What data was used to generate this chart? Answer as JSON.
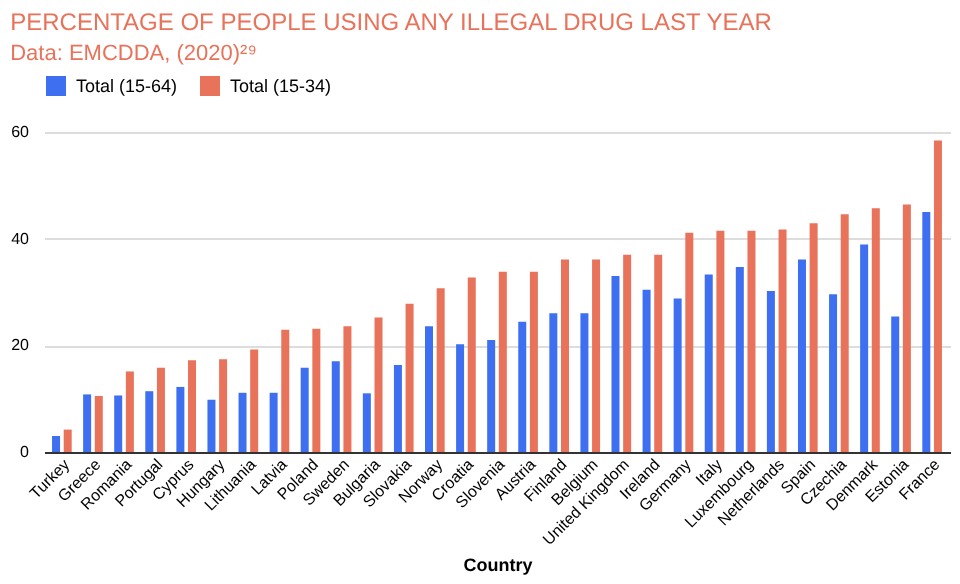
{
  "chart_data": {
    "type": "bar",
    "title": "PERCENTAGE OF PEOPLE USING ANY ILLEGAL DRUG LAST YEAR",
    "subtitle": "Data: EMCDDA, (2020)²⁹",
    "xlabel": "Country",
    "categories": [
      "Turkey",
      "Greece",
      "Romania",
      "Portugal",
      "Cyprus",
      "Hungary",
      "Lithuania",
      "Latvia",
      "Poland",
      "Sweden",
      "Bulgaria",
      "Slovakia",
      "Norway",
      "Croatia",
      "Slovenia",
      "Austria",
      "Finland",
      "Belgium",
      "United Kingdom",
      "Ireland",
      "Germany",
      "Italy",
      "Luxembourg",
      "Netherlands",
      "Spain",
      "Czechia",
      "Denmark",
      "Estonia",
      "France"
    ],
    "series": [
      {
        "name": "Total (15-64)",
        "color": "#3d6ff0",
        "values": [
          3.0,
          10.8,
          10.6,
          11.4,
          12.2,
          9.8,
          11.1,
          11.1,
          15.8,
          17.0,
          11.0,
          16.3,
          23.6,
          20.2,
          21.0,
          24.4,
          26.0,
          26.0,
          33.0,
          30.4,
          28.8,
          33.3,
          34.7,
          30.2,
          36.1,
          29.6,
          38.9,
          25.4,
          45.0
        ]
      },
      {
        "name": "Total (15-34)",
        "color": "#e8735a",
        "values": [
          4.2,
          10.5,
          15.1,
          15.8,
          17.2,
          17.4,
          19.2,
          22.9,
          23.1,
          23.6,
          25.2,
          27.8,
          30.7,
          32.7,
          33.8,
          33.8,
          36.1,
          36.1,
          37.0,
          37.0,
          41.1,
          41.5,
          41.5,
          41.7,
          42.9,
          44.6,
          45.7,
          46.4,
          58.4
        ]
      }
    ],
    "ylim": [
      0,
      60
    ],
    "yticks": [
      0,
      20,
      40,
      60
    ],
    "grid": "y",
    "legend": "top"
  }
}
